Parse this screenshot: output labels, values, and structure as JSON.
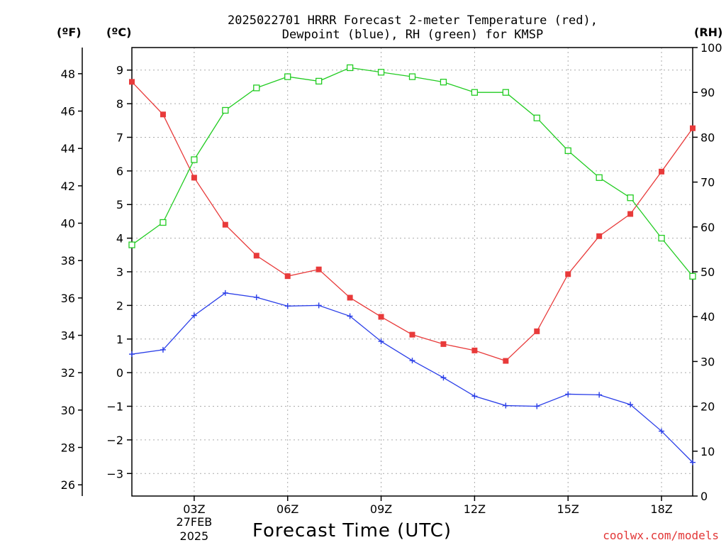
{
  "title_lines": [
    "2025022701 HRRR Forecast 2-meter Temperature (red),",
    "Dewpoint (blue), RH (green) for KMSP"
  ],
  "unit_labels": {
    "fahrenheit": "(ºF)",
    "celsius": "(ºC)",
    "rh": "(RH)"
  },
  "x_title": "Forecast Time (UTC)",
  "credit": "coolwx.com/models",
  "date_label": [
    "27FEB",
    "2025"
  ],
  "colors": {
    "temperature": "#e83a3a",
    "dewpoint": "#2a3ee8",
    "rh": "#22cc22",
    "grid": "#aaaaaa",
    "axis": "#000000"
  },
  "chart_data": {
    "type": "line",
    "x": [
      "01Z",
      "02Z",
      "03Z",
      "04Z",
      "05Z",
      "06Z",
      "07Z",
      "08Z",
      "09Z",
      "10Z",
      "11Z",
      "12Z",
      "13Z",
      "14Z",
      "15Z",
      "16Z",
      "17Z",
      "18Z",
      "19Z"
    ],
    "x_tick_labels": [
      "03Z",
      "06Z",
      "09Z",
      "12Z",
      "15Z",
      "18Z"
    ],
    "xlim": [
      1,
      19
    ],
    "left_axis_f": {
      "range": [
        25.4,
        49.4
      ],
      "ticks": [
        26,
        28,
        30,
        32,
        34,
        36,
        38,
        40,
        42,
        44,
        46,
        48
      ]
    },
    "left_axis_c": {
      "range": [
        -3.67,
        9.67
      ],
      "ticks": [
        -3,
        -2,
        -1,
        0,
        1,
        2,
        3,
        4,
        5,
        6,
        7,
        8,
        9
      ]
    },
    "right_axis_rh": {
      "range": [
        0,
        100
      ],
      "ticks": [
        0,
        10,
        20,
        30,
        40,
        50,
        60,
        70,
        80,
        90,
        100
      ]
    },
    "grid": true,
    "series": [
      {
        "name": "Temperature",
        "axis": "celsius",
        "marker": "filled-square",
        "values": [
          8.65,
          7.68,
          5.8,
          4.4,
          3.48,
          2.87,
          3.07,
          2.23,
          1.66,
          1.13,
          0.85,
          0.66,
          0.35,
          1.23,
          2.93,
          4.06,
          4.72,
          5.98,
          7.27
        ]
      },
      {
        "name": "Dewpoint",
        "axis": "celsius",
        "marker": "plus",
        "values": [
          0.55,
          0.68,
          1.7,
          2.37,
          2.24,
          1.98,
          2.0,
          1.68,
          0.93,
          0.36,
          -0.15,
          -0.7,
          -0.98,
          -1.0,
          -0.64,
          -0.66,
          -0.95,
          -1.74,
          -2.67
        ]
      },
      {
        "name": "RH",
        "axis": "rh",
        "marker": "open-square",
        "values": [
          56,
          61,
          75,
          86,
          91,
          93.5,
          92.5,
          95.5,
          94.5,
          93.5,
          92.3,
          90,
          90,
          84.3,
          77,
          71,
          66.5,
          57.5,
          49
        ]
      }
    ]
  }
}
